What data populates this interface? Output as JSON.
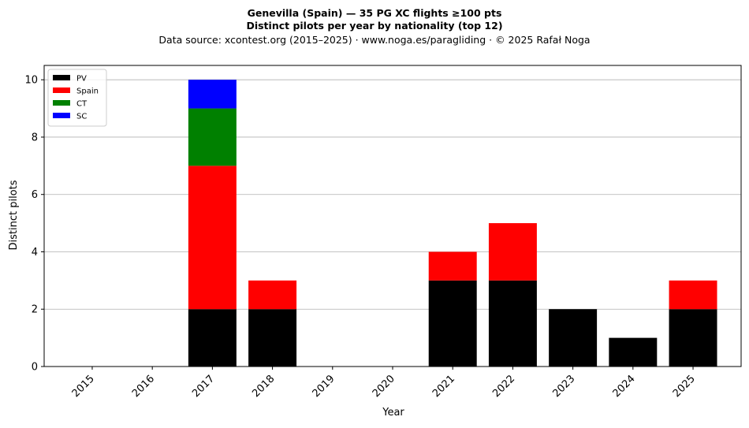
{
  "chart_data": {
    "type": "bar",
    "stacked": true,
    "title_line1": "Genevilla (Spain)  —  35 PG XC flights ≥100 pts",
    "title_line2": "Distinct pilots per year by nationality (top 12)",
    "subtitle": "Data source: xcontest.org (2015–2025)  ·  www.noga.es/paragliding  ·  © 2025 Rafał Noga",
    "xlabel": "Year",
    "ylabel": "Distinct pilots",
    "categories": [
      "2015",
      "2016",
      "2017",
      "2018",
      "2019",
      "2020",
      "2021",
      "2022",
      "2023",
      "2024",
      "2025"
    ],
    "ylim": [
      0,
      10.5
    ],
    "yticks": [
      0,
      2,
      4,
      6,
      8,
      10
    ],
    "grid": "y",
    "legend_position": "top-left",
    "series": [
      {
        "name": "PV",
        "color": "#000000",
        "values": [
          0,
          0,
          2,
          2,
          0,
          0,
          3,
          3,
          2,
          1,
          2
        ]
      },
      {
        "name": "Spain",
        "color": "#ff0000",
        "values": [
          0,
          0,
          5,
          1,
          0,
          0,
          1,
          2,
          0,
          0,
          1
        ]
      },
      {
        "name": "CT",
        "color": "#008000",
        "values": [
          0,
          0,
          2,
          0,
          0,
          0,
          0,
          0,
          0,
          0,
          0
        ]
      },
      {
        "name": "SC",
        "color": "#0000ff",
        "values": [
          0,
          0,
          1,
          0,
          0,
          0,
          0,
          0,
          0,
          0,
          0
        ]
      }
    ]
  }
}
